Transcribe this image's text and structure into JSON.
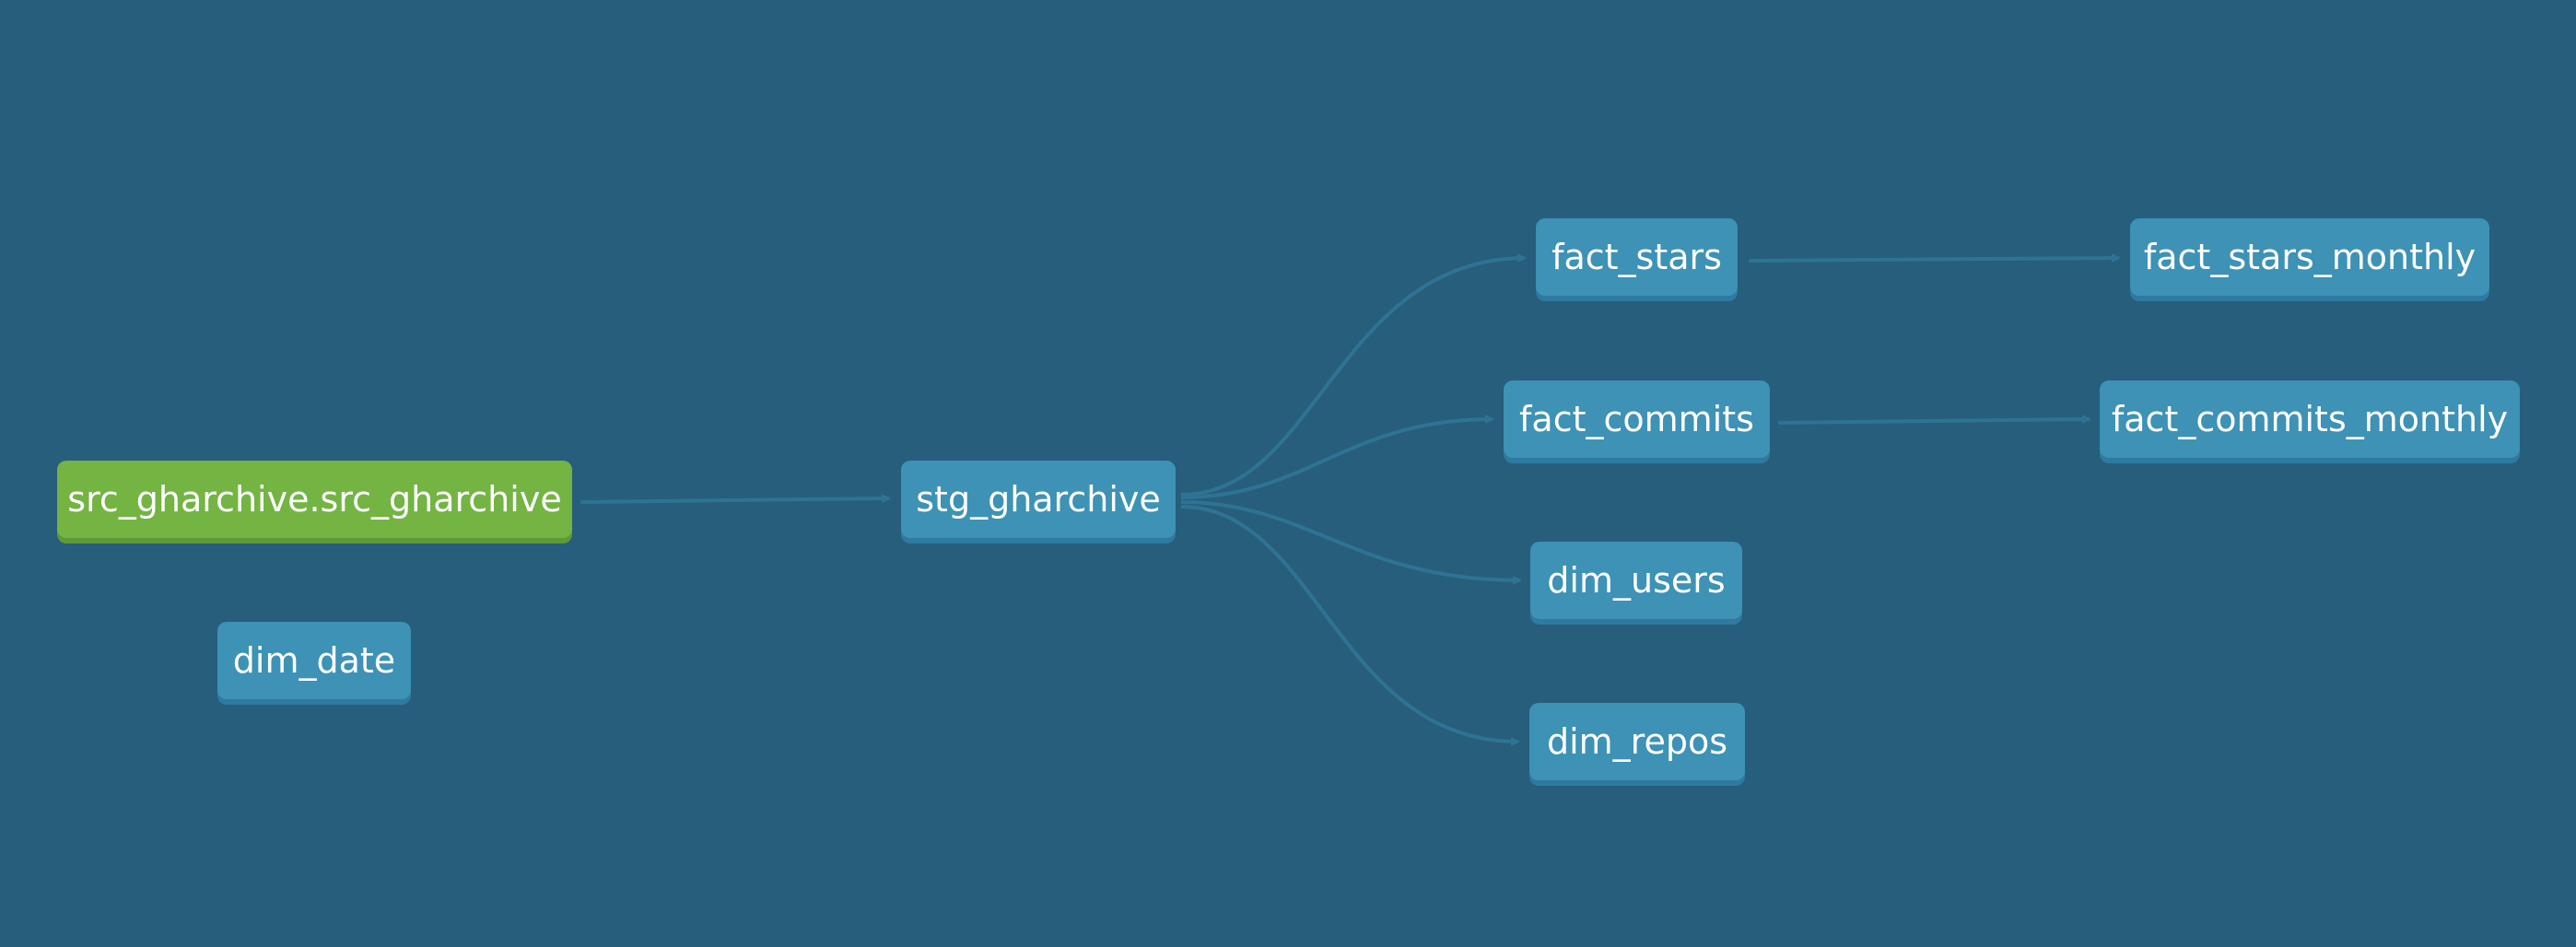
{
  "colors": {
    "background": "#265e7b",
    "model_node": "#3d92b5",
    "source_node": "#73b443",
    "edge": "#2f7394"
  },
  "nodes": {
    "src_gharchive": "src_gharchive.src_gharchive",
    "dim_date": "dim_date",
    "stg_gharchive": "stg_gharchive",
    "fact_stars": "fact_stars",
    "fact_commits": "fact_commits",
    "dim_users": "dim_users",
    "dim_repos": "dim_repos",
    "fact_stars_monthly": "fact_stars_monthly",
    "fact_commits_monthly": "fact_commits_monthly"
  },
  "edges": [
    {
      "from": "src_gharchive",
      "to": "stg_gharchive"
    },
    {
      "from": "stg_gharchive",
      "to": "fact_stars"
    },
    {
      "from": "stg_gharchive",
      "to": "fact_commits"
    },
    {
      "from": "stg_gharchive",
      "to": "dim_users"
    },
    {
      "from": "stg_gharchive",
      "to": "dim_repos"
    },
    {
      "from": "fact_stars",
      "to": "fact_stars_monthly"
    },
    {
      "from": "fact_commits",
      "to": "fact_commits_monthly"
    }
  ]
}
